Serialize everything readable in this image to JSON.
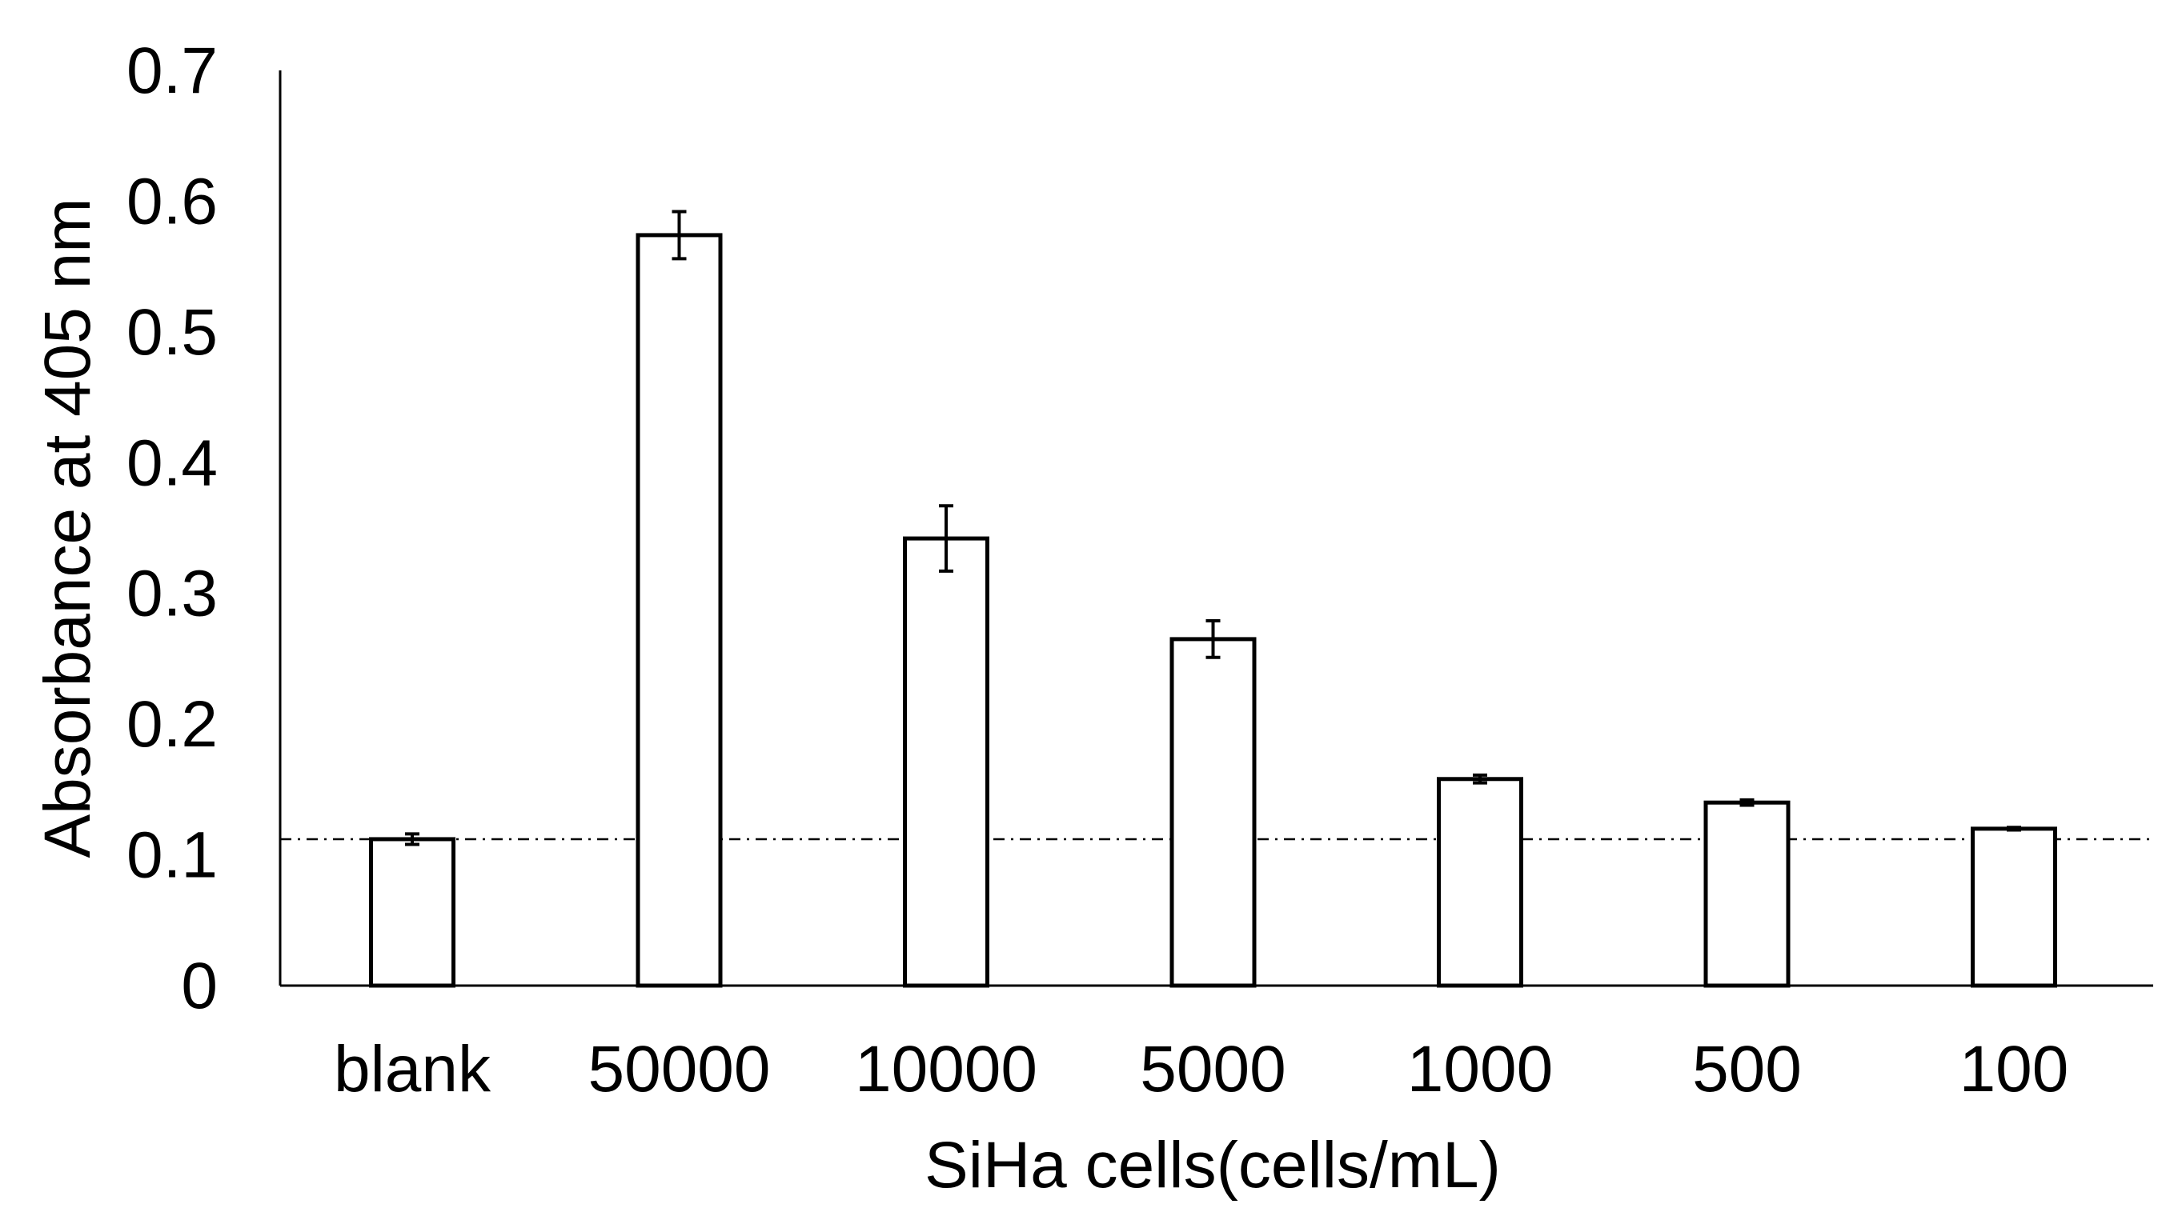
{
  "chart_data": {
    "type": "bar",
    "title": "",
    "xlabel": "SiHa cells(cells/mL)",
    "ylabel": "Absorbance at 405 nm",
    "ylim": [
      0,
      0.7
    ],
    "yticks": [
      "0",
      "0.1",
      "0.2",
      "0.3",
      "0.4",
      "0.5",
      "0.6",
      "0.7"
    ],
    "categories": [
      "blank",
      "50000",
      "10000",
      "5000",
      "1000",
      "500",
      "100"
    ],
    "values": [
      0.112,
      0.574,
      0.342,
      0.265,
      0.158,
      0.14,
      0.12
    ],
    "errors": [
      0.004,
      0.018,
      0.025,
      0.014,
      0.003,
      0.002,
      0.001
    ],
    "reference_line": {
      "y": 0.112,
      "style": "dash-dot"
    },
    "grid": false,
    "legend": "none",
    "colors": {
      "bar_fill": "#ffffff",
      "bar_stroke": "#000000",
      "axis": "#000000"
    }
  }
}
